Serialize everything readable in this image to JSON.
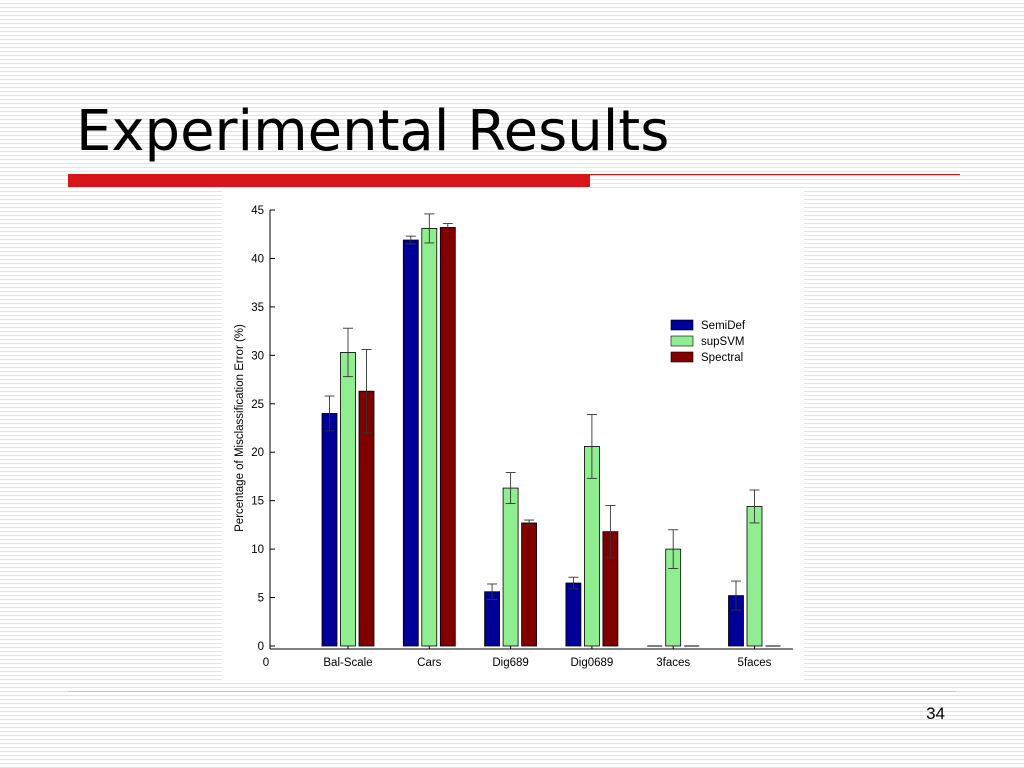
{
  "slide": {
    "title": "Experimental Results",
    "page_number": "34"
  },
  "chart_data": {
    "type": "bar",
    "categories": [
      "Bal-Scale",
      "Cars",
      "Dig689",
      "Dig0689",
      "3faces",
      "5faces"
    ],
    "x_origin_label": "0",
    "series": [
      {
        "name": "SemiDef",
        "color": "#000099",
        "values": [
          24.0,
          41.9,
          5.6,
          6.5,
          0,
          5.2
        ],
        "errors": [
          1.8,
          0.4,
          0.8,
          0.6,
          0,
          1.5
        ]
      },
      {
        "name": "supSVM",
        "color": "#90ee90",
        "values": [
          30.3,
          43.1,
          16.3,
          20.6,
          10.0,
          14.4
        ],
        "errors": [
          2.5,
          1.5,
          1.6,
          3.3,
          2.0,
          1.7
        ]
      },
      {
        "name": "Spectral",
        "color": "#800000",
        "values": [
          26.3,
          43.2,
          12.7,
          11.8,
          0,
          0
        ],
        "errors": [
          4.3,
          0.4,
          0.3,
          2.7,
          0,
          0
        ]
      }
    ],
    "ylabel": "Percentage of Misclassification Error (%)",
    "xlabel": "",
    "ylim": [
      0,
      45
    ],
    "yticks": [
      0,
      5,
      10,
      15,
      20,
      25,
      30,
      35,
      40,
      45
    ],
    "grid": false,
    "legend_position": "right"
  }
}
